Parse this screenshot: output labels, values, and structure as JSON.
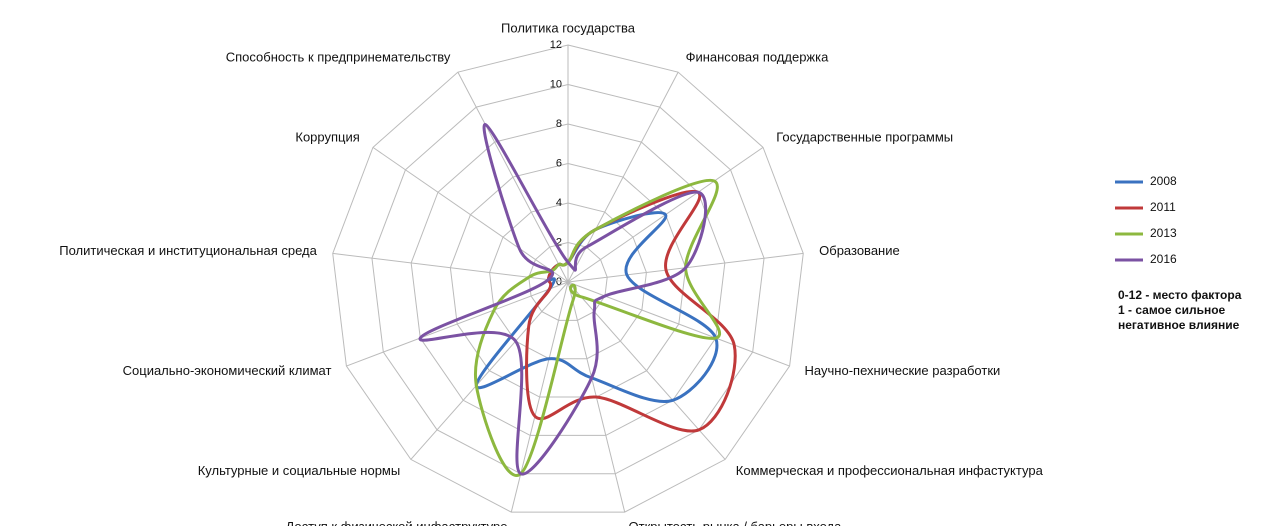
{
  "chart_data": {
    "type": "radar",
    "categories": [
      "Политика государства",
      "Финансовая поддержка",
      "Государственные программы",
      "Образование",
      "Научно-пехнические разработки",
      "Коммерческая и профессиональная инфастуктура",
      "Открытость рынка / барьеры входа",
      "Доступ к физической инфаструктуре",
      "Культурные и социальные нормы",
      "Социально-экономический климат",
      "Политическая и институциональная среда",
      "Коррупция",
      "Способность к предпринемательству"
    ],
    "series": [
      {
        "name": "2008",
        "color": "#3a72c0",
        "values": [
          1,
          3,
          6,
          3,
          8,
          8,
          5,
          4,
          7,
          1,
          1,
          1,
          1
        ]
      },
      {
        "name": "2011",
        "color": "#c0393a",
        "values": [
          1,
          3,
          8,
          5,
          9,
          10,
          6,
          7,
          3,
          1,
          1,
          1,
          1
        ]
      },
      {
        "name": "2013",
        "color": "#8db83f",
        "values": [
          1,
          3,
          9,
          6,
          8,
          1,
          1,
          10,
          7,
          4,
          2,
          1,
          1
        ]
      },
      {
        "name": "2016",
        "color": "#7b52a3",
        "values": [
          1,
          2,
          8,
          6,
          2,
          2,
          5,
          10,
          4,
          8,
          1,
          3,
          9
        ]
      }
    ],
    "ylim": [
      0,
      12
    ],
    "yticks": [
      0,
      2,
      4,
      6,
      8,
      10,
      12
    ],
    "annotation": [
      "0-12 - место фактора",
      "1 - самое сильное",
      "негативное влияние"
    ]
  }
}
